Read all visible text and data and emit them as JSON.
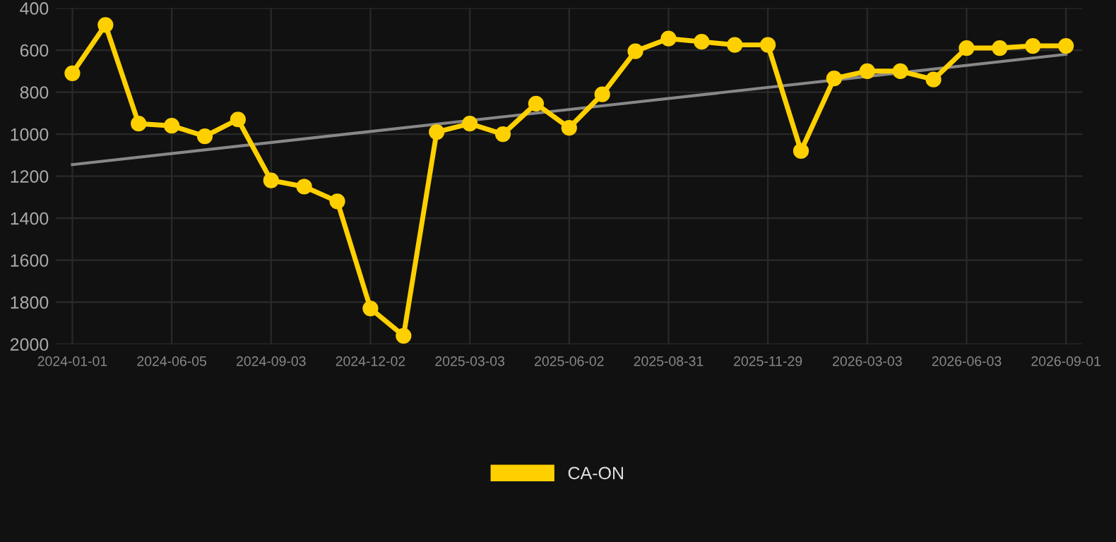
{
  "chart_data": {
    "type": "line",
    "categories": [
      "2024-01-01",
      null,
      null,
      "2024-06-05",
      null,
      null,
      "2024-09-03",
      null,
      null,
      "2024-12-02",
      null,
      null,
      "2025-03-03",
      null,
      null,
      "2025-06-02",
      null,
      null,
      "2025-08-31",
      null,
      null,
      "2025-11-29",
      null,
      null,
      "2026-03-03",
      null,
      null,
      "2026-06-03",
      null,
      null,
      "2026-09-01"
    ],
    "series": [
      {
        "name": "CA-ON",
        "color": "#ffd000",
        "marker": "circle",
        "values": [
          710,
          480,
          950,
          960,
          1010,
          930,
          1220,
          1250,
          1320,
          1830,
          1960,
          990,
          950,
          1000,
          855,
          970,
          810,
          605,
          545,
          560,
          575,
          575,
          1080,
          735,
          700,
          700,
          740,
          590,
          590,
          580,
          580
        ]
      },
      {
        "type": "line",
        "color": "#888888",
        "marker": "none",
        "values": [
          1145,
          null,
          null,
          null,
          null,
          null,
          null,
          null,
          null,
          null,
          null,
          null,
          null,
          null,
          null,
          null,
          null,
          null,
          null,
          null,
          null,
          null,
          null,
          null,
          null,
          null,
          null,
          null,
          null,
          null,
          620
        ]
      }
    ],
    "ylim": [
      2000,
      400
    ],
    "yticks": [
      400,
      600,
      800,
      1000,
      1200,
      1400,
      1600,
      1800,
      2000
    ],
    "grid": true,
    "legend": "bottom"
  }
}
